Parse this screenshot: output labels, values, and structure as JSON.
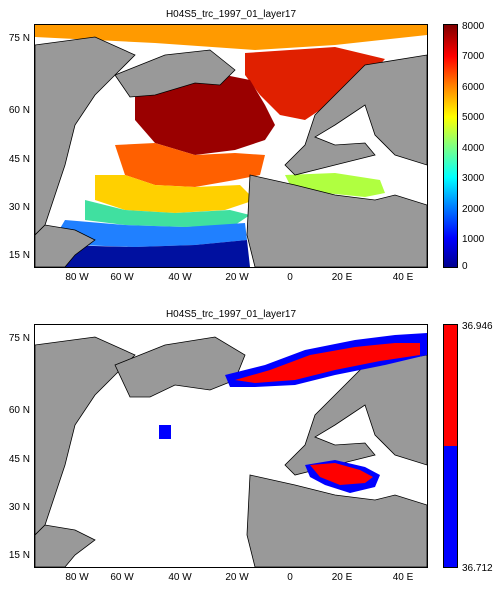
{
  "panels": [
    {
      "title": "H04S5_trc_1997_01_layer17",
      "lat_labels": [
        "75 N",
        "60 N",
        "45 N",
        "30 N",
        "15 N"
      ],
      "lon_labels": [
        "80 W",
        "60 W",
        "40 W",
        "20 W",
        "0",
        "20 E",
        "40 E"
      ],
      "colorbar": {
        "type": "continuous",
        "colormap": "jet",
        "ticks": [
          "8000",
          "7000",
          "6000",
          "5000",
          "4000",
          "3000",
          "2000",
          "1000",
          "0"
        ]
      }
    },
    {
      "title": "H04S5_trc_1997_01_layer17",
      "lat_labels": [
        "75 N",
        "60 N",
        "45 N",
        "30 N",
        "15 N"
      ],
      "lon_labels": [
        "80 W",
        "60 W",
        "40 W",
        "20 W",
        "0",
        "20 E",
        "40 E"
      ],
      "colorbar": {
        "type": "two-class",
        "colors": [
          "#ff0000",
          "#0000ff"
        ],
        "ticks": [
          "36.946",
          "36.712"
        ]
      }
    }
  ],
  "colors": {
    "land": "#999999",
    "water": "#ffffff",
    "coast": "#000000"
  }
}
